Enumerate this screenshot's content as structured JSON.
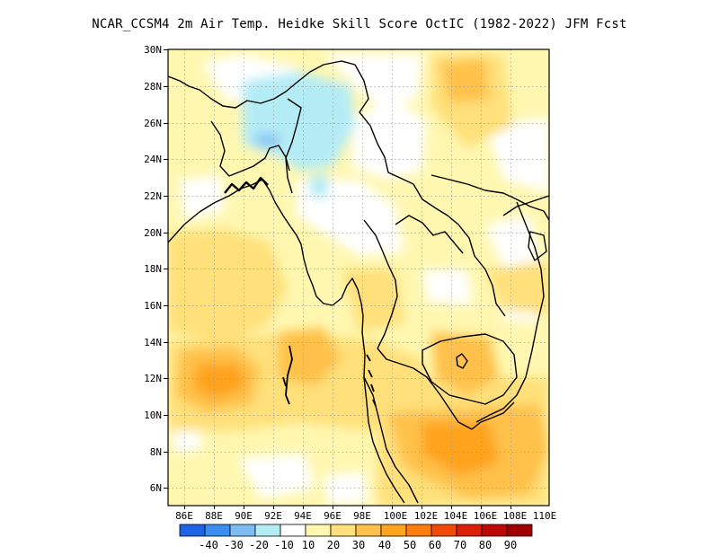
{
  "title": "NCAR_CCSM4  2m Air Temp. Heidke Skill Score OctIC (1982-2022) JFM Fcst",
  "x_ticks": [
    "86E",
    "88E",
    "90E",
    "92E",
    "94E",
    "96E",
    "98E",
    "100E",
    "102E",
    "104E",
    "106E",
    "108E",
    "110E"
  ],
  "y_ticks": [
    "30N",
    "28N",
    "26N",
    "24N",
    "22N",
    "20N",
    "18N",
    "16N",
    "14N",
    "12N",
    "10N",
    "8N",
    "6N"
  ],
  "colorbar": {
    "colors": [
      "#1e64e6",
      "#3a8ef0",
      "#7dbcf5",
      "#b4ecf6",
      "#ffffff",
      "#fff7b0",
      "#ffe07a",
      "#ffc14a",
      "#ffa31c",
      "#ff7d0c",
      "#f24a06",
      "#dc1e06",
      "#be0808",
      "#a00000"
    ],
    "labels": [
      "-40",
      "-30",
      "-20",
      "-10",
      "10",
      "20",
      "30",
      "40",
      "50",
      "60",
      "70",
      "80",
      "90"
    ]
  },
  "legend_items": {
    "label_neg40": "-40",
    "label_neg30": "-30",
    "label_neg20": "-20",
    "label_neg10": "-10",
    "label_10": "10",
    "label_20": "20",
    "label_30": "30",
    "label_40": "40",
    "label_50": "50",
    "label_60": "60",
    "label_70": "70",
    "label_80": "80",
    "label_90": "90"
  }
}
